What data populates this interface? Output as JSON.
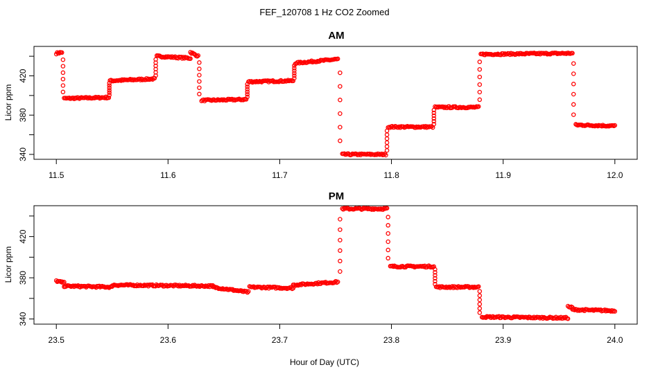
{
  "chart_data": {
    "type": "scatter",
    "title": "FEF_120708  1 Hz CO2 Zoomed",
    "xlabel": "Hour of Day (UTC)",
    "marker_color": "#ff0000",
    "grid": false,
    "panels": [
      {
        "title": "AM",
        "ylabel": "Licor ppm",
        "xlim": [
          11.48,
          12.02
        ],
        "ylim": [
          335,
          450
        ],
        "xticks": [
          "11.5",
          "11.6",
          "11.7",
          "11.8",
          "11.9",
          "12.0"
        ],
        "yticks": [
          "340",
          "380",
          "420"
        ],
        "series": [
          {
            "segments": [
              {
                "x0": 11.5,
                "x1": 11.505,
                "y0": 443,
                "y1": 444
              },
              {
                "x0": 11.507,
                "x1": 11.547,
                "y0": 397,
                "y1": 398
              },
              {
                "x0": 11.548,
                "x1": 11.588,
                "y0": 415,
                "y1": 417
              },
              {
                "x0": 11.59,
                "x1": 11.62,
                "y0": 440,
                "y1": 438
              },
              {
                "x0": 11.62,
                "x1": 11.627,
                "y0": 444,
                "y1": 440
              },
              {
                "x0": 11.63,
                "x1": 11.67,
                "y0": 395,
                "y1": 396
              },
              {
                "x0": 11.672,
                "x1": 11.712,
                "y0": 414,
                "y1": 415
              },
              {
                "x0": 11.714,
                "x1": 11.752,
                "y0": 433,
                "y1": 437
              },
              {
                "x0": 11.756,
                "x1": 11.795,
                "y0": 340,
                "y1": 340
              },
              {
                "x0": 11.797,
                "x1": 11.837,
                "y0": 368,
                "y1": 368
              },
              {
                "x0": 11.839,
                "x1": 11.878,
                "y0": 388,
                "y1": 388
              },
              {
                "x0": 11.88,
                "x1": 11.962,
                "y0": 442,
                "y1": 443
              },
              {
                "x0": 11.965,
                "x1": 12.0,
                "y0": 370,
                "y1": 369
              }
            ],
            "transitions": [
              {
                "x": 11.506,
                "y": [
                  443,
                  397
                ]
              },
              {
                "x": 11.5475,
                "y": [
                  398,
                  415
                ]
              },
              {
                "x": 11.589,
                "y": [
                  417,
                  440
                ]
              },
              {
                "x": 11.628,
                "y": [
                  440,
                  395
                ]
              },
              {
                "x": 11.671,
                "y": [
                  396,
                  414
                ]
              },
              {
                "x": 11.713,
                "y": [
                  415,
                  433
                ]
              },
              {
                "x": 11.754,
                "y": [
                  437,
                  340
                ]
              },
              {
                "x": 11.796,
                "y": [
                  340,
                  368
                ]
              },
              {
                "x": 11.838,
                "y": [
                  368,
                  388
                ]
              },
              {
                "x": 11.879,
                "y": [
                  388,
                  442
                ]
              },
              {
                "x": 11.963,
                "y": [
                  443,
                  370
                ]
              }
            ]
          }
        ]
      },
      {
        "title": "PM",
        "ylabel": "Licor ppm",
        "xlim": [
          23.48,
          24.02
        ],
        "ylim": [
          335,
          450
        ],
        "xticks": [
          "23.5",
          "23.6",
          "23.7",
          "23.8",
          "23.9",
          "24.0"
        ],
        "yticks": [
          "340",
          "380",
          "420"
        ],
        "series": [
          {
            "segments": [
              {
                "x0": 23.5,
                "x1": 23.507,
                "y0": 377,
                "y1": 375
              },
              {
                "x0": 23.507,
                "x1": 23.55,
                "y0": 372,
                "y1": 371
              },
              {
                "x0": 23.55,
                "x1": 23.64,
                "y0": 373,
                "y1": 372
              },
              {
                "x0": 23.64,
                "x1": 23.672,
                "y0": 371,
                "y1": 366
              },
              {
                "x0": 23.673,
                "x1": 23.712,
                "y0": 371,
                "y1": 370
              },
              {
                "x0": 23.712,
                "x1": 23.752,
                "y0": 373,
                "y1": 376
              },
              {
                "x0": 23.756,
                "x1": 23.796,
                "y0": 447,
                "y1": 447
              },
              {
                "x0": 23.799,
                "x1": 23.838,
                "y0": 391,
                "y1": 391
              },
              {
                "x0": 23.84,
                "x1": 23.878,
                "y0": 371,
                "y1": 371
              },
              {
                "x0": 23.881,
                "x1": 23.958,
                "y0": 342,
                "y1": 341
              },
              {
                "x0": 23.958,
                "x1": 23.962,
                "y0": 352,
                "y1": 351
              },
              {
                "x0": 23.962,
                "x1": 24.0,
                "y0": 349,
                "y1": 348
              }
            ],
            "transitions": [
              {
                "x": 23.754,
                "y": [
                  376,
                  447
                ]
              },
              {
                "x": 23.797,
                "y": [
                  447,
                  391
                ]
              },
              {
                "x": 23.839,
                "y": [
                  391,
                  371
                ]
              },
              {
                "x": 23.879,
                "y": [
                  371,
                  342
                ]
              }
            ]
          }
        ]
      }
    ]
  }
}
